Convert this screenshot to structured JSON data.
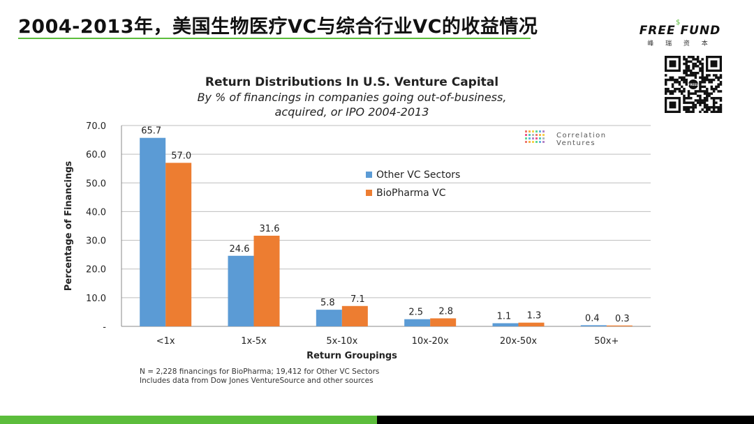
{
  "slide": {
    "title": "2004-2013年，美国生物医疗VC与综合行业VC的收益情况"
  },
  "logo": {
    "name": "FREE FUND",
    "sub": "峰 瑞 资 本",
    "qr_center_text": "FREES"
  },
  "colors": {
    "accent_green": "#5cbd3c",
    "series_blue": "#5b9bd5",
    "series_orange": "#ed7d31"
  },
  "chart_data": {
    "type": "bar",
    "title": "Return Distributions In U.S. Venture Capital",
    "subtitle_lines": [
      "By % of financings in companies going out-of-business,",
      "acquired, or IPO 2004-2013"
    ],
    "categories": [
      "<1x",
      "1x-5x",
      "5x-10x",
      "10x-20x",
      "20x-50x",
      "50x+"
    ],
    "series": [
      {
        "name": "Other VC Sectors",
        "color": "#5b9bd5",
        "values": [
          65.7,
          24.6,
          5.8,
          2.5,
          1.1,
          0.4
        ],
        "labels": [
          "65.7",
          "24.6",
          "5.8",
          "2.5",
          "1.1",
          "0.4"
        ]
      },
      {
        "name": "BioPharma VC",
        "color": "#ed7d31",
        "values": [
          57.0,
          31.6,
          7.1,
          2.8,
          1.3,
          0.3
        ],
        "labels": [
          "57.0",
          "31.6",
          "7.1",
          "2.8",
          "1.3",
          "0.3"
        ]
      }
    ],
    "xlabel": "Return Groupings",
    "ylabel": "Percentage of Financings",
    "ylim": [
      0,
      70
    ],
    "yticks": [
      "-",
      "10.0",
      "20.0",
      "30.0",
      "40.0",
      "50.0",
      "60.0",
      "70.0"
    ],
    "grid": true,
    "legend_position": "center-right",
    "watermark": {
      "line1": "Correlation",
      "line2": "Ventures"
    },
    "footnotes": [
      "N = 2,228 financings for BioPharma; 19,412 for Other VC Sectors",
      "Includes data from Dow Jones VentureSource and other sources"
    ]
  }
}
